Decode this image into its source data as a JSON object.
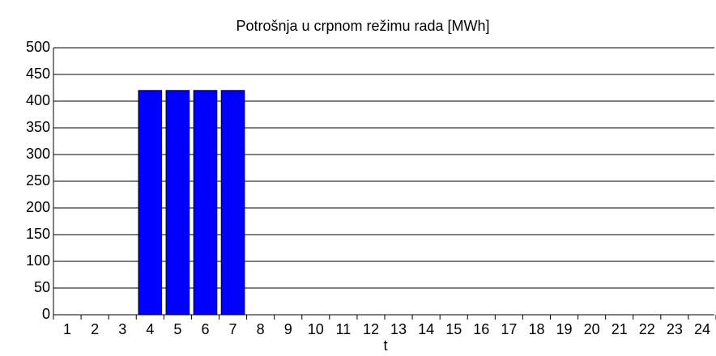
{
  "chart_data": {
    "type": "bar",
    "title": "Potrošnja u crpnom režimu rada [MWh]",
    "x_label": "t",
    "categories": [
      "1",
      "2",
      "3",
      "4",
      "5",
      "6",
      "7",
      "8",
      "9",
      "10",
      "11",
      "12",
      "13",
      "14",
      "15",
      "16",
      "17",
      "18",
      "19",
      "20",
      "21",
      "22",
      "23",
      "24"
    ],
    "values": [
      0,
      0,
      0,
      420,
      420,
      420,
      420,
      0,
      0,
      0,
      0,
      0,
      0,
      0,
      0,
      0,
      0,
      0,
      0,
      0,
      0,
      0,
      0,
      0
    ],
    "color": "#0000ff",
    "ylim": [
      0,
      500
    ],
    "yticks": [
      0,
      50,
      100,
      150,
      200,
      250,
      300,
      350,
      400,
      450,
      500
    ],
    "grid": true
  }
}
